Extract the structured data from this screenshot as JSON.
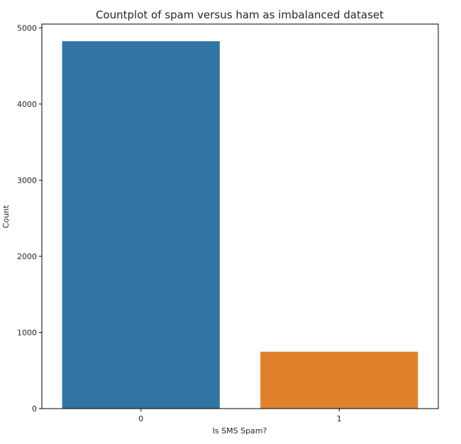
{
  "chart_data": {
    "type": "bar",
    "title": "Countplot of spam versus ham as imbalanced dataset",
    "xlabel": "Is SMS Spam?",
    "ylabel": "Count",
    "categories": [
      "0",
      "1"
    ],
    "values": [
      4825,
      747
    ],
    "colors": [
      "#3274a1",
      "#e1812c"
    ],
    "ylim": [
      0,
      5050
    ],
    "yticks": [
      0,
      1000,
      2000,
      3000,
      4000,
      5000
    ],
    "grid": false,
    "legend": "none"
  }
}
